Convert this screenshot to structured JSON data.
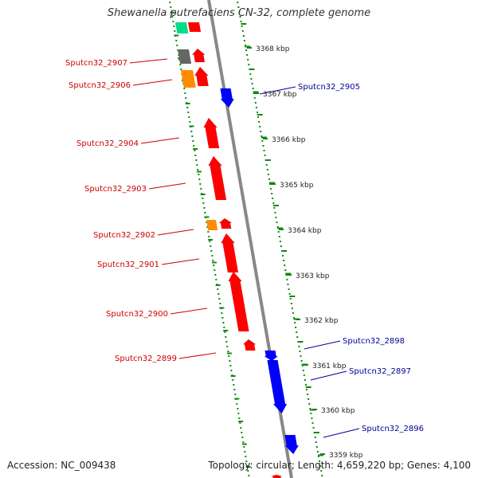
{
  "title": "Shewanella putrefaciens CN-32, complete genome",
  "footer": {
    "accession": "Accession: NC_009438",
    "summary": "Topology: circular; Length: 4,659,220 bp; Genes: 4,100"
  },
  "colors": {
    "forward_gene": "#ff0000",
    "reverse_gene": "#0000ff",
    "forward_label": "#cc0000",
    "reverse_label": "#000099",
    "backbone": "#888888",
    "tick": "#118811",
    "orange_gene": "#ff8c00",
    "gray_gene": "#666666",
    "green_gene": "#00dd88"
  },
  "ticks": [
    {
      "label": "3368 kbp"
    },
    {
      "label": "3367 kbp"
    },
    {
      "label": "3366 kbp"
    },
    {
      "label": "3365 kbp"
    },
    {
      "label": "3364 kbp"
    },
    {
      "label": "3363 kbp"
    },
    {
      "label": "3362 kbp"
    },
    {
      "label": "3361 kbp"
    },
    {
      "label": "3360 kbp"
    },
    {
      "label": "3359 kbp"
    }
  ],
  "forward_genes": [
    {
      "name": "Sputcn32_2907"
    },
    {
      "name": "Sputcn32_2906"
    },
    {
      "name": "Sputcn32_2904"
    },
    {
      "name": "Sputcn32_2903"
    },
    {
      "name": "Sputcn32_2902"
    },
    {
      "name": "Sputcn32_2901"
    },
    {
      "name": "Sputcn32_2900"
    },
    {
      "name": "Sputcn32_2899"
    }
  ],
  "reverse_genes": [
    {
      "name": "Sputcn32_2905"
    },
    {
      "name": "Sputcn32_2898"
    },
    {
      "name": "Sputcn32_2897"
    },
    {
      "name": "Sputcn32_2896"
    }
  ]
}
